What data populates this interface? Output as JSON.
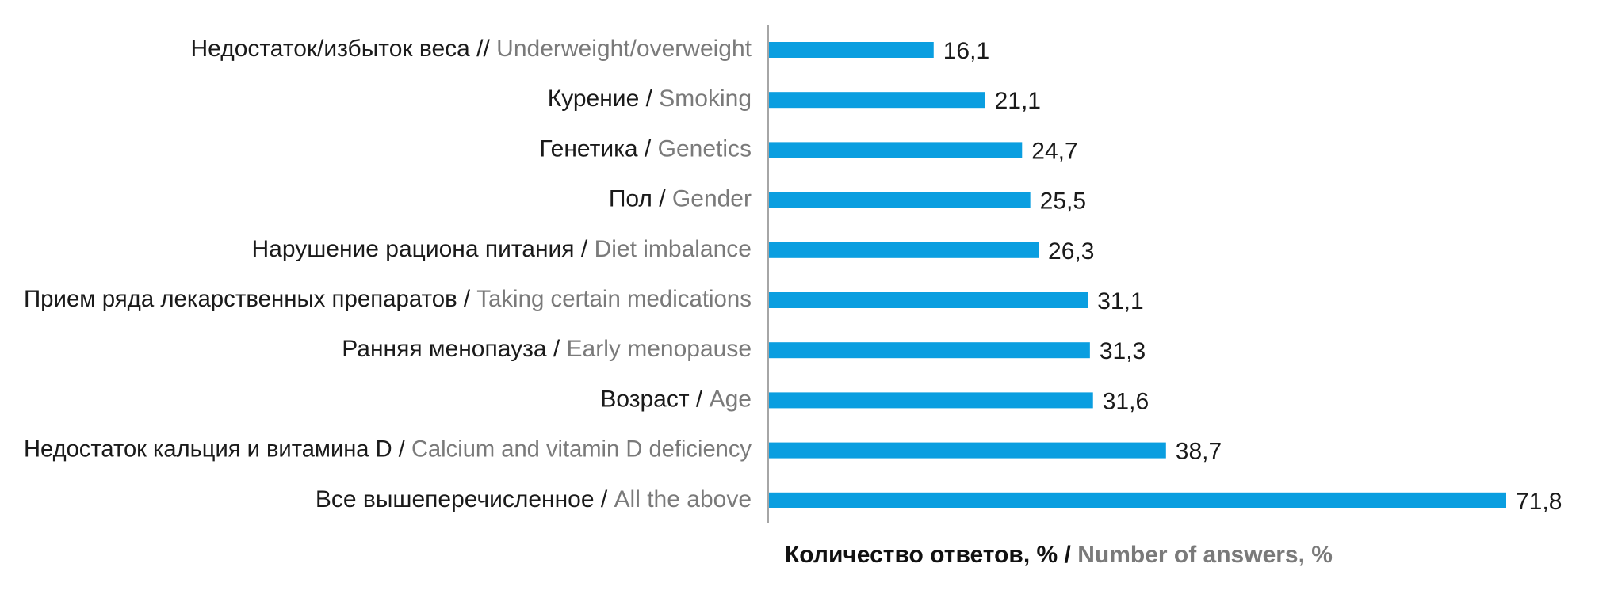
{
  "chart_data": {
    "type": "bar",
    "orientation": "horizontal",
    "categories": [
      {
        "ru": "Недостаток/избыток веса",
        "sep": " // ",
        "en": "Underweight/overweight"
      },
      {
        "ru": "Курение",
        "sep": " / ",
        "en": "Smoking"
      },
      {
        "ru": "Генетика",
        "sep": " / ",
        "en": "Genetics"
      },
      {
        "ru": "Пол",
        "sep": " / ",
        "en": "Gender"
      },
      {
        "ru": "Нарушение рациона питания",
        "sep": " / ",
        "en": "Diet imbalance"
      },
      {
        "ru": "Прием ряда лекарственных препаратов",
        "sep": " / ",
        "en": "Taking certain medications"
      },
      {
        "ru": "Ранняя менопауза",
        "sep": " / ",
        "en": "Early menopause"
      },
      {
        "ru": "Возраст",
        "sep": " / ",
        "en": "Age"
      },
      {
        "ru": "Недостаток кальция и витамина D",
        "sep": " / ",
        "en": "Calcium and vitamin D deficiency"
      },
      {
        "ru": "Все вышеперечисленное",
        "sep": " / ",
        "en": "All the above"
      }
    ],
    "values": [
      16.1,
      21.1,
      24.7,
      25.5,
      26.3,
      31.1,
      31.3,
      31.6,
      38.7,
      71.8
    ],
    "value_labels": [
      "16,1",
      "21,1",
      "24,7",
      "25,5",
      "26,3",
      "31,1",
      "31,3",
      "31,6",
      "38,7",
      "71,8"
    ],
    "xlabel": {
      "ru": "Количество ответов, % / ",
      "en": "Number of answers, %"
    },
    "xlim": [
      0,
      80
    ],
    "grid": false,
    "legend": "none",
    "colors": {
      "bar": "#0a9ee0",
      "axis": "#a6a6a6",
      "label_ru": "#1a1a1a",
      "label_en": "#7a7a7a"
    }
  }
}
